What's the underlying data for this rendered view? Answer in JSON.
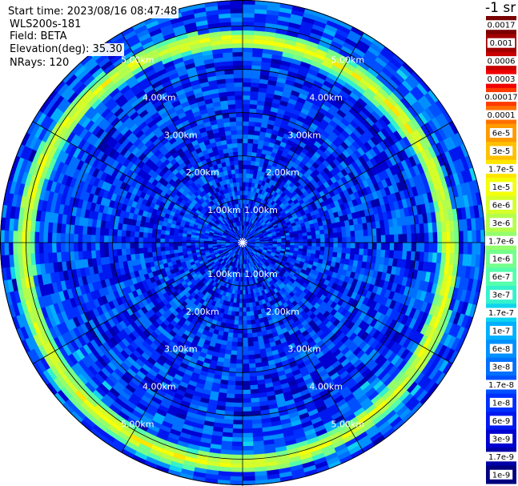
{
  "header": {
    "start_time": "Start time: 2023/08/16 08:47:48",
    "instrument": "WLS200s-181",
    "field": "Field: BETA",
    "elevation": "Elevation(deg): 35.30",
    "nrays": "NRays: 120"
  },
  "chart_data": {
    "type": "heatmap",
    "projection": "polar",
    "unit_label": "-1 sr",
    "range_rings_km": [
      1,
      2,
      3,
      4,
      5
    ],
    "ring_tick_labels": [
      "1.00km",
      "2.00km",
      "3.00km",
      "4.00km",
      "5.00km"
    ],
    "spokes_deg": [
      0,
      30,
      60,
      90,
      120,
      150,
      180,
      210,
      240,
      270,
      300,
      330
    ],
    "max_range_km": 5.6,
    "colorbar": {
      "labels": [
        "0.0017",
        "0.001",
        "0.0006",
        "0.0003",
        "0.00017",
        "0.0001",
        "6e-5",
        "3e-5",
        "1.7e-5",
        "1e-5",
        "6e-6",
        "3e-6",
        "1.7e-6",
        "1e-6",
        "6e-7",
        "3e-7",
        "1.7e-7",
        "1e-7",
        "6e-8",
        "3e-8",
        "1.7e-8",
        "1e-8",
        "6e-9",
        "3e-9",
        "1.7e-9",
        "1e-9"
      ],
      "colors": [
        "#7a0000",
        "#a00000",
        "#c80000",
        "#f00000",
        "#ff3a00",
        "#ff7000",
        "#ff9a00",
        "#ffc000",
        "#ffe600",
        "#f4ff0a",
        "#d6ff2a",
        "#b4ff4c",
        "#94ff6c",
        "#74ff8c",
        "#54ffac",
        "#34f2cc",
        "#10d4ee",
        "#00b0ff",
        "#0090ff",
        "#0070ff",
        "#0050ff",
        "#0030ff",
        "#0018f0",
        "#0000d0",
        "#0000a8",
        "#00007e"
      ]
    },
    "field_summary": {
      "background_level": "1e-8",
      "aerosol_layer_level": "1e-5",
      "aerosol_layer_ring_km": 4.9
    }
  }
}
